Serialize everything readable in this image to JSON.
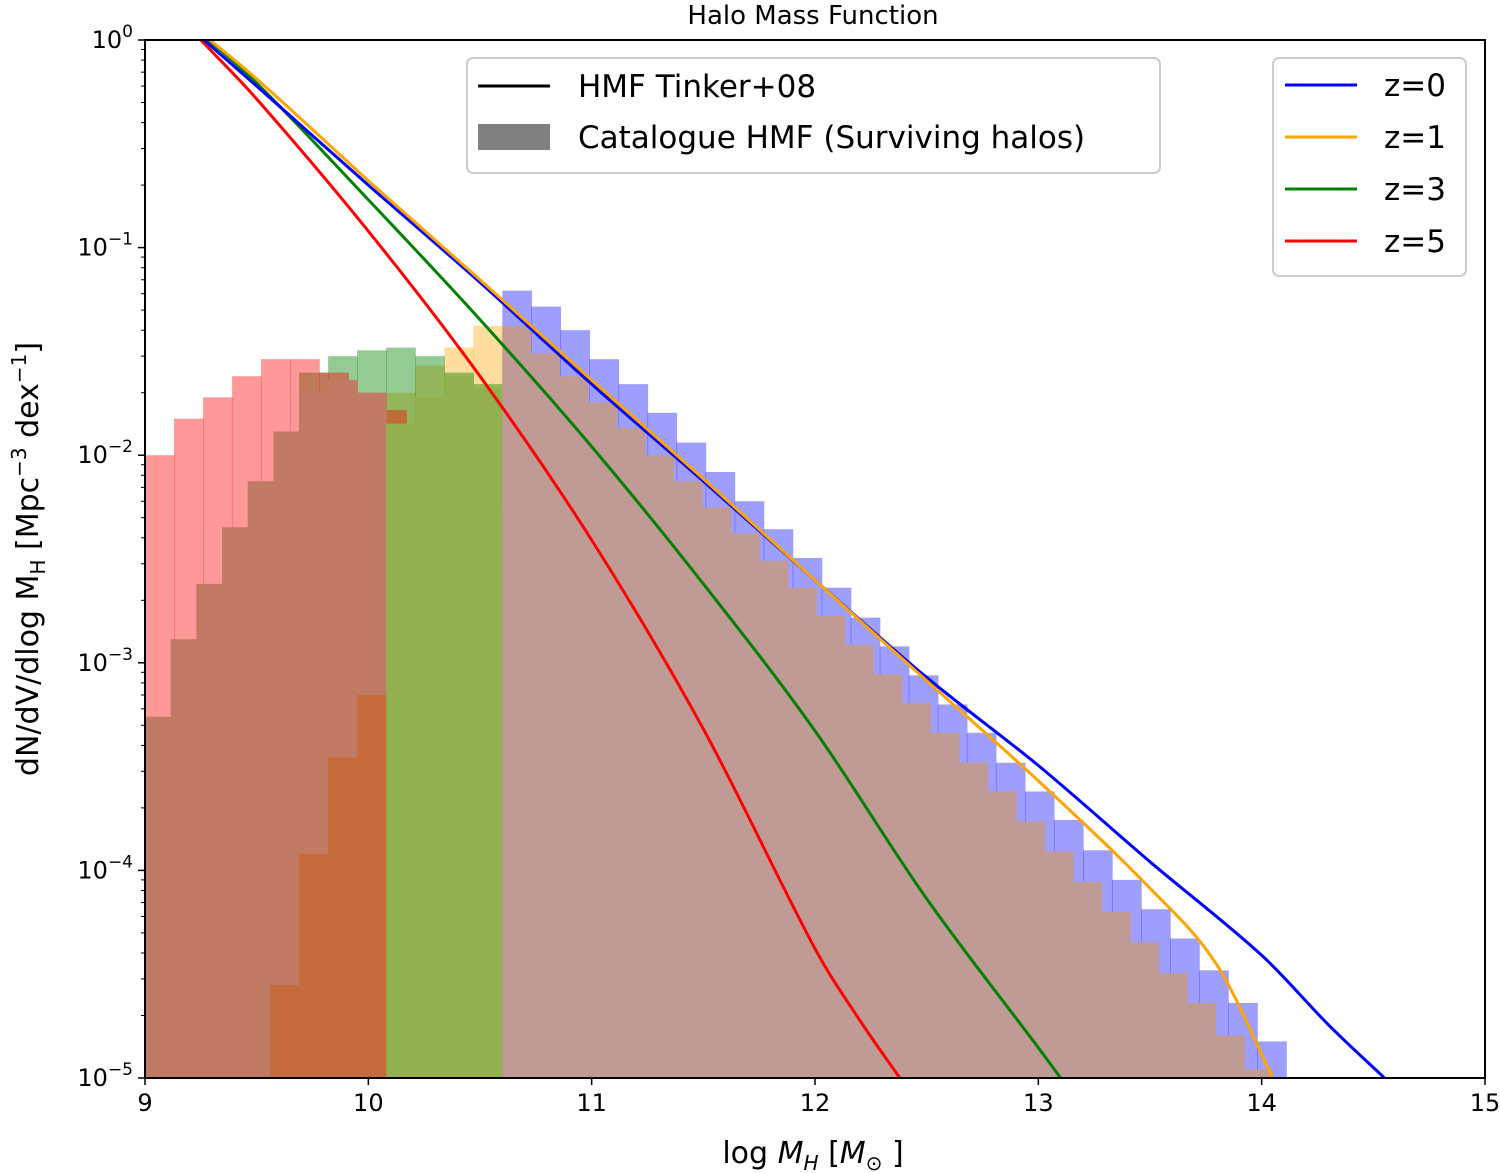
{
  "chart_data": {
    "type": "line",
    "title": "Halo Mass Function",
    "xlabel": "log M_H [M_⊙]",
    "xlabel_parts": {
      "pre": "log ",
      "var": "M",
      "sub": "H",
      "unit_open": " [",
      "unit_var": "M",
      "unit_sub": "⊙",
      "unit_close": " ]"
    },
    "ylabel": "dN/dV/dlog M_H [Mpc^-3 dex^-1]",
    "ylabel_parts": {
      "a": "dN/dV/dlog M",
      "b": "H",
      "c": " [Mpc",
      "d": "−3",
      "e": " dex",
      "f": "−1",
      "g": "]"
    },
    "xlim": [
      9,
      15
    ],
    "ylim": [
      1e-05,
      1
    ],
    "yscale": "log",
    "x_ticks": [
      "9",
      "10",
      "11",
      "12",
      "13",
      "14",
      "15"
    ],
    "y_ticks": [
      {
        "base": "10",
        "exp": "0"
      },
      {
        "base": "10",
        "exp": "−1"
      },
      {
        "base": "10",
        "exp": "−2"
      },
      {
        "base": "10",
        "exp": "−3"
      },
      {
        "base": "10",
        "exp": "−4"
      },
      {
        "base": "10",
        "exp": "−5"
      }
    ],
    "grid": false,
    "legend_style": {
      "placement": "top-center",
      "entries": [
        {
          "label": "HMF Tinker+08",
          "kind": "line",
          "color": "#000000"
        },
        {
          "label": "Catalogue HMF (Surviving halos)",
          "kind": "patch",
          "color": "#808080"
        }
      ]
    },
    "legend_redshift": {
      "placement": "top-right",
      "entries": [
        {
          "label": "z=0",
          "color": "#0000ff"
        },
        {
          "label": "z=1",
          "color": "#ffa500"
        },
        {
          "label": "z=3",
          "color": "#008000"
        },
        {
          "label": "z=5",
          "color": "#ff0000"
        }
      ]
    },
    "bin_width": 0.13,
    "series": [
      {
        "name": "z=0",
        "color": "#0000ff",
        "hist_start": 10.6,
        "hist_alpha": 0.38,
        "hist_values": [
          0.062,
          0.052,
          0.04,
          0.029,
          0.022,
          0.016,
          0.0115,
          0.0083,
          0.006,
          0.0044,
          0.0032,
          0.0023,
          0.00165,
          0.0012,
          0.00087,
          0.00063,
          0.00046,
          0.00033,
          0.00024,
          0.000175,
          0.000125,
          9e-05,
          6.5e-05,
          4.7e-05,
          3.3e-05,
          2.3e-05,
          1.5e-05
        ],
        "hmf_x": [
          9.2,
          9.5,
          10.0,
          10.5,
          11.0,
          11.5,
          12.0,
          12.5,
          13.0,
          13.5,
          14.0,
          14.3,
          14.55
        ],
        "hmf_y": [
          1.15,
          0.6,
          0.2,
          0.068,
          0.022,
          0.0075,
          0.0025,
          0.00085,
          0.00032,
          0.00011,
          3.9e-05,
          1.8e-05,
          1e-05
        ]
      },
      {
        "name": "z=1",
        "color": "#ffa500",
        "hist_start": 10.08,
        "hist_alpha": 0.38,
        "hist_values": [
          0.02,
          0.027,
          0.033,
          0.042,
          0.031,
          0.024,
          0.018,
          0.0135,
          0.01,
          0.0075,
          0.0056,
          0.0042,
          0.0031,
          0.0023,
          0.00168,
          0.00122,
          0.00088,
          0.00064,
          0.00046,
          0.00033,
          0.00024,
          0.000172,
          0.000123,
          8.8e-05,
          6.3e-05,
          4.5e-05,
          3.2e-05,
          2.3e-05,
          1.6e-05,
          1.1e-05
        ],
        "hmf_x": [
          9.2,
          9.5,
          10.0,
          10.5,
          11.0,
          11.5,
          12.0,
          12.5,
          13.0,
          13.5,
          13.8,
          14.05
        ],
        "hmf_y": [
          1.2,
          0.65,
          0.21,
          0.07,
          0.023,
          0.0077,
          0.0025,
          0.00082,
          0.00027,
          8.2e-05,
          3.5e-05,
          1e-05
        ]
      },
      {
        "name": "z=3",
        "color": "#008000",
        "hist_start": 9.69,
        "hist_alpha": 0.42,
        "hist_values": [
          0.025,
          0.03,
          0.032,
          0.033,
          0.03,
          0.025,
          0.022,
          0.0155,
          0.0115,
          0.0084,
          0.006,
          0.0042,
          0.0029,
          0.002,
          0.00135,
          0.0009,
          0.0006,
          0.0004,
          0.00026,
          0.000168,
          0.000108,
          6.9e-05,
          4.3e-05,
          2.6e-05,
          1.6e-05
        ],
        "hmf_x": [
          9.2,
          9.5,
          10.0,
          10.5,
          11.0,
          11.5,
          12.0,
          12.5,
          13.0,
          13.1
        ],
        "hmf_y": [
          1.2,
          0.62,
          0.17,
          0.045,
          0.011,
          0.0024,
          0.00047,
          7.3e-05,
          1.4e-05,
          1e-05
        ]
      },
      {
        "name": "z=5",
        "color": "#ff0000",
        "hist_start": 9.0,
        "hist_alpha": 0.4,
        "hist_values": [
          0.01,
          0.015,
          0.019,
          0.024,
          0.029,
          0.029,
          0.025,
          0.02,
          0.0165,
          0.014,
          0.0115,
          0.0092,
          0.007,
          0.0053,
          0.004,
          0.003,
          0.0022,
          0.00165,
          0.00121,
          0.00088,
          0.00063,
          0.00045,
          0.00032,
          0.000225,
          0.000155,
          0.000108,
          7.4e-05,
          5e-05,
          3.4e-05,
          2.2e-05,
          1.45e-05
        ],
        "hmf_x": [
          9.25,
          9.5,
          10.0,
          10.5,
          11.0,
          11.5,
          12.0,
          12.2,
          12.38
        ],
        "hmf_y": [
          1.0,
          0.52,
          0.12,
          0.024,
          0.0039,
          0.00048,
          4.2e-05,
          1.9e-05,
          1e-05
        ]
      }
    ],
    "overlap_fills": [
      {
        "start": 9.0,
        "end": 9.69,
        "color": "#c17a64",
        "values": [
          0.00055,
          0.0013,
          0.0024,
          0.0045,
          0.0075,
          0.013
        ]
      },
      {
        "start": 9.69,
        "end": 10.08,
        "color": "#c17a64",
        "values": [
          0.02,
          0.023,
          0.02
        ]
      },
      {
        "start": 9.56,
        "end": 10.6,
        "color": "#c56c3a",
        "values": [
          2.8e-05,
          0.00012,
          0.00035,
          0.0007,
          0.0018,
          0.0048,
          0.0091,
          0.0118
        ]
      },
      {
        "start": 10.08,
        "end": 10.6,
        "color": "#93b04e",
        "values": [
          0.0142,
          0.019,
          0.024,
          0.021
        ]
      },
      {
        "start": 10.6,
        "end": 12.53,
        "color": "#a95736",
        "values": [
          0.0055,
          0.0043,
          0.0032,
          0.0023,
          0.0016,
          0.0011,
          0.00075,
          0.00048,
          0.00031,
          0.0002,
          0.00013,
          8.3e-05,
          5.2e-05,
          3.3e-05,
          2.1e-05,
          1.3e-05
        ]
      },
      {
        "start": 10.6,
        "end": 12.9,
        "color": "#759457",
        "values": [
          0.0155,
          0.0115,
          0.0084,
          0.006,
          0.0042,
          0.0029,
          0.002,
          0.00135,
          0.0009,
          0.0006,
          0.0004,
          0.00026,
          0.000168,
          0.000108,
          6.9e-05,
          4.3e-05,
          2.6e-05,
          1.6e-05
        ]
      },
      {
        "start": 10.6,
        "end": 14.05,
        "color": "#c09b96",
        "values": [
          0.042,
          0.031,
          0.024,
          0.018,
          0.0135,
          0.01,
          0.0075,
          0.0056,
          0.0042,
          0.0031,
          0.0023,
          0.00168,
          0.00122,
          0.00088,
          0.00064,
          0.00046,
          0.00033,
          0.00024,
          0.000172,
          0.000123,
          8.8e-05,
          6.3e-05,
          4.5e-05,
          3.2e-05,
          2.3e-05,
          1.6e-05,
          1.1e-05
        ]
      }
    ]
  }
}
